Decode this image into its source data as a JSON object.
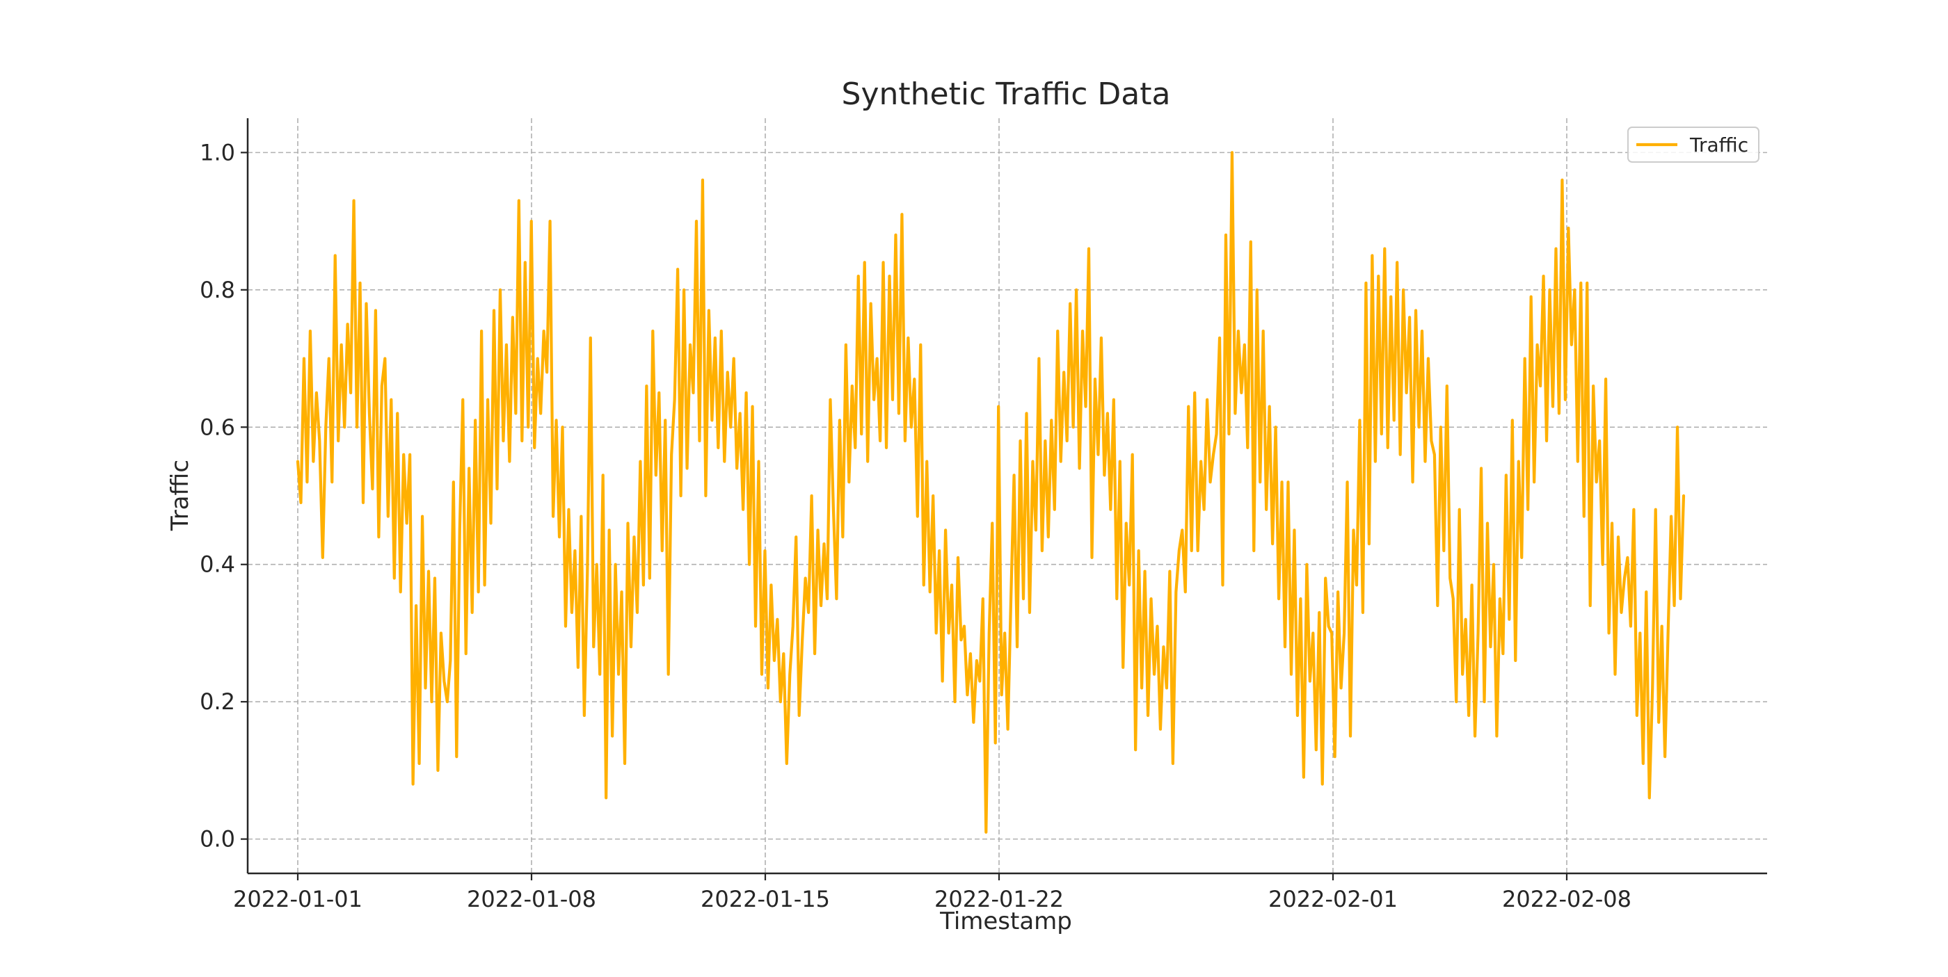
{
  "chart_data": {
    "type": "line",
    "title": "Synthetic Traffic Data",
    "xlabel": "Timestamp",
    "ylabel": "Traffic",
    "x_start": "2022-01-01",
    "x_end": "2022-02-11T12:00",
    "xlim": [
      "2021-12-30T12:00",
      "2022-02-14"
    ],
    "ylim": [
      -0.05,
      1.05
    ],
    "x_ticks": [
      "2022-01-01",
      "2022-01-08",
      "2022-01-15",
      "2022-01-22",
      "2022-02-01",
      "2022-02-08"
    ],
    "y_ticks": [
      "0.0",
      "0.2",
      "0.4",
      "0.6",
      "0.8",
      "1.0"
    ],
    "grid": true,
    "legend": {
      "position": "top-right",
      "entries": [
        "Traffic"
      ]
    },
    "series": [
      {
        "name": "Traffic",
        "color": "#FFB000",
        "values": [
          0.55,
          0.49,
          0.7,
          0.52,
          0.74,
          0.55,
          0.65,
          0.58,
          0.41,
          0.6,
          0.7,
          0.52,
          0.85,
          0.58,
          0.72,
          0.6,
          0.75,
          0.65,
          0.93,
          0.6,
          0.81,
          0.49,
          0.78,
          0.62,
          0.51,
          0.77,
          0.44,
          0.66,
          0.7,
          0.47,
          0.64,
          0.38,
          0.62,
          0.36,
          0.56,
          0.46,
          0.56,
          0.08,
          0.34,
          0.11,
          0.47,
          0.22,
          0.39,
          0.2,
          0.38,
          0.1,
          0.3,
          0.23,
          0.2,
          0.26,
          0.52,
          0.12,
          0.45,
          0.64,
          0.27,
          0.54,
          0.33,
          0.61,
          0.36,
          0.74,
          0.37,
          0.64,
          0.46,
          0.77,
          0.51,
          0.8,
          0.58,
          0.72,
          0.55,
          0.76,
          0.62,
          0.93,
          0.58,
          0.84,
          0.6,
          0.9,
          0.57,
          0.7,
          0.62,
          0.74,
          0.68,
          0.9,
          0.47,
          0.61,
          0.44,
          0.6,
          0.31,
          0.48,
          0.33,
          0.42,
          0.25,
          0.47,
          0.18,
          0.39,
          0.73,
          0.28,
          0.4,
          0.24,
          0.53,
          0.06,
          0.45,
          0.15,
          0.4,
          0.24,
          0.36,
          0.11,
          0.46,
          0.28,
          0.44,
          0.33,
          0.55,
          0.37,
          0.66,
          0.38,
          0.74,
          0.53,
          0.65,
          0.42,
          0.61,
          0.24,
          0.56,
          0.64,
          0.83,
          0.5,
          0.8,
          0.54,
          0.72,
          0.65,
          0.9,
          0.58,
          0.96,
          0.5,
          0.77,
          0.61,
          0.73,
          0.57,
          0.74,
          0.55,
          0.68,
          0.6,
          0.7,
          0.54,
          0.62,
          0.48,
          0.65,
          0.4,
          0.63,
          0.31,
          0.55,
          0.24,
          0.42,
          0.22,
          0.37,
          0.26,
          0.32,
          0.2,
          0.27,
          0.11,
          0.24,
          0.31,
          0.44,
          0.18,
          0.29,
          0.38,
          0.33,
          0.5,
          0.27,
          0.45,
          0.34,
          0.43,
          0.35,
          0.64,
          0.48,
          0.35,
          0.61,
          0.44,
          0.72,
          0.52,
          0.66,
          0.57,
          0.82,
          0.59,
          0.84,
          0.55,
          0.78,
          0.64,
          0.7,
          0.58,
          0.84,
          0.57,
          0.82,
          0.64,
          0.88,
          0.62,
          0.91,
          0.58,
          0.73,
          0.6,
          0.67,
          0.47,
          0.72,
          0.37,
          0.55,
          0.36,
          0.5,
          0.3,
          0.42,
          0.23,
          0.45,
          0.3,
          0.37,
          0.2,
          0.41,
          0.29,
          0.31,
          0.21,
          0.27,
          0.17,
          0.26,
          0.23,
          0.35,
          0.01,
          0.3,
          0.46,
          0.14,
          0.63,
          0.21,
          0.3,
          0.16,
          0.35,
          0.53,
          0.28,
          0.58,
          0.35,
          0.62,
          0.33,
          0.55,
          0.45,
          0.7,
          0.42,
          0.58,
          0.44,
          0.61,
          0.48,
          0.74,
          0.55,
          0.68,
          0.58,
          0.78,
          0.6,
          0.8,
          0.54,
          0.74,
          0.63,
          0.86,
          0.41,
          0.67,
          0.56,
          0.73,
          0.53,
          0.62,
          0.48,
          0.64,
          0.35,
          0.55,
          0.25,
          0.46,
          0.37,
          0.56,
          0.13,
          0.42,
          0.22,
          0.39,
          0.18,
          0.35,
          0.24,
          0.31,
          0.16,
          0.28,
          0.22,
          0.39,
          0.11,
          0.36,
          0.42,
          0.45,
          0.36,
          0.63,
          0.42,
          0.65,
          0.42,
          0.55,
          0.48,
          0.64,
          0.52,
          0.56,
          0.59,
          0.73,
          0.37,
          0.88,
          0.59,
          1.0,
          0.62,
          0.74,
          0.65,
          0.72,
          0.57,
          0.87,
          0.42,
          0.8,
          0.52,
          0.74,
          0.48,
          0.63,
          0.43,
          0.6,
          0.35,
          0.52,
          0.28,
          0.52,
          0.24,
          0.45,
          0.18,
          0.35,
          0.09,
          0.4,
          0.23,
          0.3,
          0.13,
          0.33,
          0.08,
          0.38,
          0.31,
          0.3,
          0.12,
          0.36,
          0.22,
          0.3,
          0.52,
          0.15,
          0.45,
          0.37,
          0.61,
          0.33,
          0.81,
          0.43,
          0.85,
          0.55,
          0.82,
          0.59,
          0.86,
          0.57,
          0.79,
          0.61,
          0.84,
          0.56,
          0.8,
          0.65,
          0.76,
          0.52,
          0.77,
          0.6,
          0.74,
          0.55,
          0.7,
          0.58,
          0.56,
          0.34,
          0.6,
          0.42,
          0.66,
          0.38,
          0.35,
          0.2,
          0.48,
          0.24,
          0.32,
          0.18,
          0.37,
          0.15,
          0.3,
          0.54,
          0.2,
          0.46,
          0.28,
          0.4,
          0.15,
          0.35,
          0.27,
          0.53,
          0.32,
          0.61,
          0.26,
          0.55,
          0.41,
          0.7,
          0.48,
          0.79,
          0.52,
          0.72,
          0.66,
          0.82,
          0.58,
          0.8,
          0.63,
          0.86,
          0.62,
          0.96,
          0.64,
          0.89,
          0.72,
          0.8,
          0.55,
          0.81,
          0.47,
          0.81,
          0.34,
          0.66,
          0.52,
          0.58,
          0.4,
          0.67,
          0.3,
          0.46,
          0.24,
          0.44,
          0.33,
          0.38,
          0.41,
          0.31,
          0.48,
          0.18,
          0.3,
          0.11,
          0.36,
          0.06,
          0.22,
          0.48,
          0.17,
          0.31,
          0.12,
          0.3,
          0.47,
          0.34,
          0.6,
          0.35,
          0.5
        ]
      }
    ]
  }
}
